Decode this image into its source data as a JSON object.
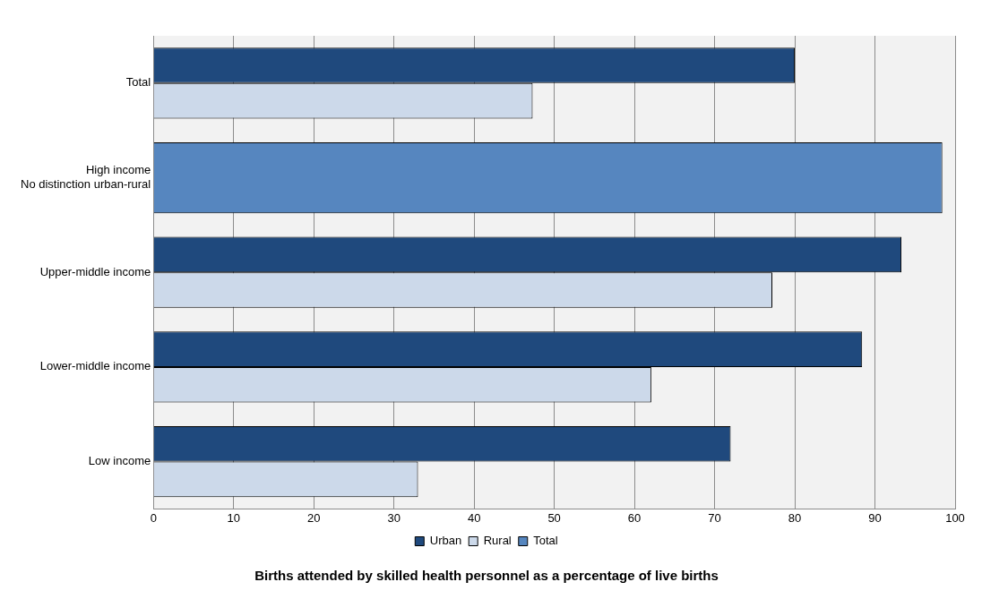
{
  "chart_data": {
    "type": "bar",
    "orientation": "horizontal",
    "title": "Births attended by skilled health personnel as a percentage of live births",
    "categories": [
      "Total",
      "High income\nNo distinction urban-rural",
      "Upper-middle income",
      "Lower-middle income",
      "Low income"
    ],
    "series": [
      {
        "name": "Urban",
        "color": "#1f497d",
        "values": [
          80,
          null,
          93.3,
          88.4,
          72
        ]
      },
      {
        "name": "Rural",
        "color": "#ccd9ea",
        "values": [
          47.3,
          null,
          77.2,
          62.1,
          33
        ]
      },
      {
        "name": "Total",
        "color": "#5686bf",
        "values": [
          null,
          98.4,
          null,
          null,
          null
        ]
      }
    ],
    "xlim": [
      0,
      100
    ],
    "xticks": [
      0,
      10,
      20,
      30,
      40,
      50,
      60,
      70,
      80,
      90,
      100
    ],
    "grid": "x",
    "legend": "bottom"
  }
}
